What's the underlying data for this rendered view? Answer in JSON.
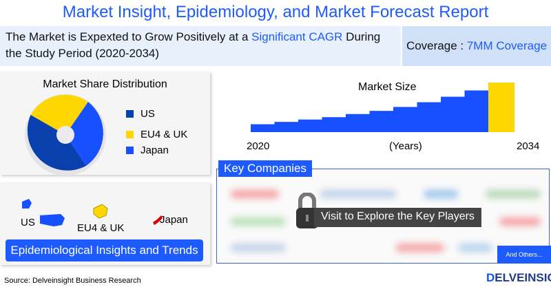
{
  "title": "Market Insight, Epidemiology, and Market Forecast Report",
  "banner": {
    "pre": "The Market is Expexted to Grow Positively at a ",
    "highlight": "Significant CAGR",
    "post": " During the Study Period (2020-2034)"
  },
  "coverage": {
    "label": "Coverage : ",
    "value": "7MM Coverage"
  },
  "market_share": {
    "title": "Market Share Distribution",
    "legend": [
      {
        "label": "US",
        "color": "#0a3fae"
      },
      {
        "label": "EU4 & UK",
        "color": "#ffd700"
      },
      {
        "label": "Japan",
        "color": "#1650ff"
      }
    ]
  },
  "chart_data": {
    "type": "bar",
    "title": "Market Size",
    "x_start": "2020",
    "x_end": "2034",
    "xlabel": "(Years)",
    "values": [
      1,
      1.3,
      1.6,
      1.9,
      2.3,
      2.7,
      3.2,
      3.8,
      4.5,
      5.3,
      6.3
    ],
    "highlight_color": "#ffd700",
    "bar_color": "#1650ff"
  },
  "map": {
    "us": "US",
    "eu": "EU4 & UK",
    "japan": "Japan"
  },
  "epi_button": "Epidemiological Insights and Trends",
  "key_companies": {
    "title": "Key Companies",
    "cta": "Visit to Explore the Key Players",
    "others": "And Others..."
  },
  "source": "Source: Delveinsight Business Research",
  "logo": "DELVEINSIGHT"
}
